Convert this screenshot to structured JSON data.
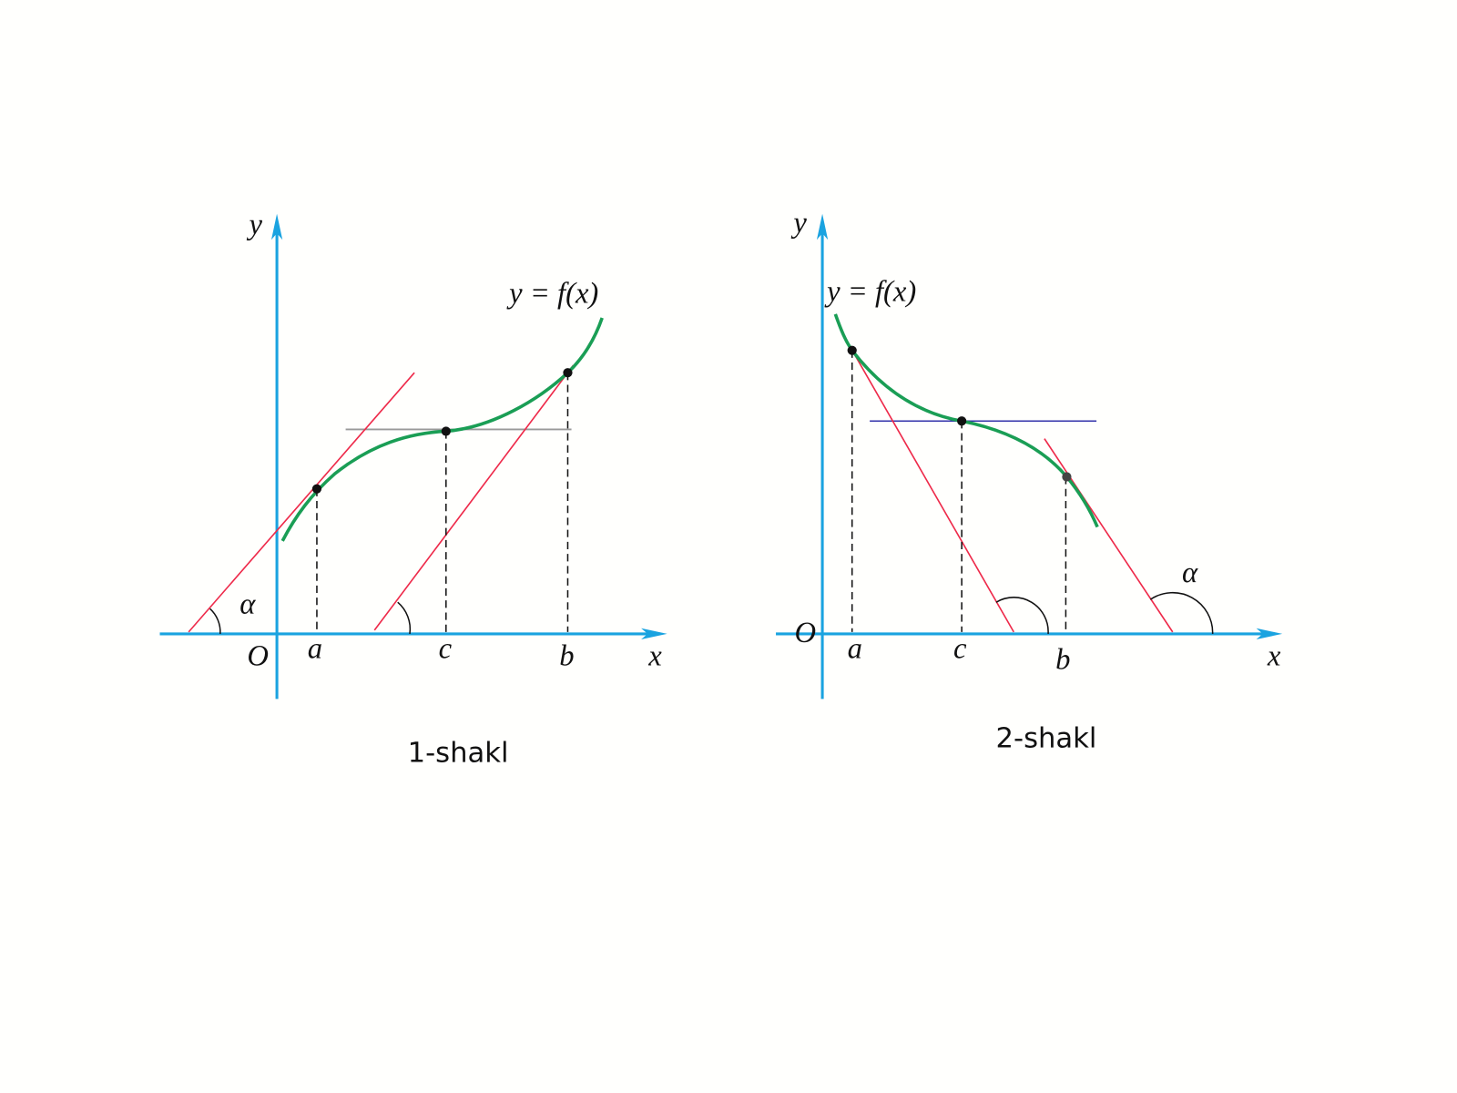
{
  "figures": [
    {
      "y_label": "y",
      "x_label": "x",
      "origin": "O",
      "points": [
        "a",
        "c",
        "b"
      ],
      "angle": "α",
      "function": "y = f(x)",
      "caption": "1-shakl"
    },
    {
      "y_label": "y",
      "x_label": "x",
      "origin": "O",
      "points": [
        "a",
        "c",
        "b"
      ],
      "angle": "α",
      "function": "y = f(x)",
      "caption": "2-shakl"
    }
  ]
}
